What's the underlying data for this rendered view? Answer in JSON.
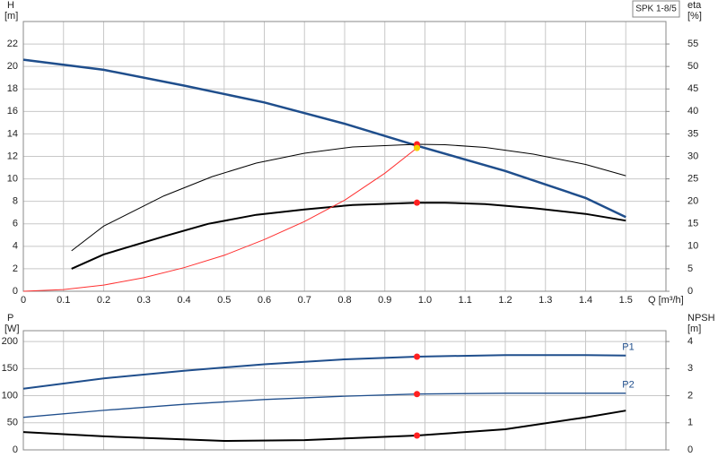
{
  "chart_data": [
    {
      "type": "line",
      "label": "SPK 1-8/5",
      "y_label": "H",
      "y_unit": "[m]",
      "y2_label": "eta",
      "y2_unit": "[%]",
      "x_label": "Q [m³/h]",
      "xlim": [
        0,
        1.6
      ],
      "xticks": [
        0,
        0.1,
        0.2,
        0.3,
        0.4,
        0.5,
        0.6,
        0.7,
        0.8,
        0.9,
        {
          "value": 1,
          "label": "1.0"
        },
        1.1,
        1.2,
        1.3,
        1.4,
        1.5
      ],
      "ylim": [
        0,
        24
      ],
      "yticks": [
        0,
        2,
        4,
        6,
        8,
        10,
        12,
        14,
        16,
        18,
        20,
        22
      ],
      "y2lim": [
        0,
        60
      ],
      "y2ticks": [
        0,
        5,
        10,
        15,
        20,
        25,
        30,
        35,
        40,
        45,
        50,
        55
      ],
      "grid": true,
      "operating_point": {
        "x": 0.98
      },
      "series": [
        {
          "color": "#1f4e8c",
          "width": 2.5,
          "marker_color": "#ff2020",
          "x": [
            0,
            0.2,
            0.4,
            0.6,
            0.8,
            0.98,
            1.2,
            1.4,
            1.5
          ],
          "values": [
            20.6,
            19.7,
            18.3,
            16.8,
            14.9,
            12.95,
            10.7,
            8.3,
            6.6
          ]
        },
        {
          "color": "#000000",
          "width": 1,
          "axis": "y2",
          "marker_color": "#ff2020",
          "x": [
            0.12,
            0.2,
            0.35,
            0.47,
            0.58,
            0.7,
            0.82,
            0.98,
            1.05,
            1.15,
            1.27,
            1.4,
            1.5
          ],
          "values": [
            9,
            14.5,
            21.2,
            25.5,
            28.5,
            30.7,
            32.1,
            32.7,
            32.6,
            32,
            30.5,
            28.2,
            25.7
          ]
        },
        {
          "color": "#000000",
          "width": 2,
          "axis": "y2",
          "marker_color": "#ff2020",
          "x": [
            0.12,
            0.2,
            0.35,
            0.46,
            0.58,
            0.7,
            0.82,
            0.98,
            1.05,
            1.15,
            1.27,
            1.4,
            1.5
          ],
          "values": [
            5,
            8.2,
            12.2,
            15,
            17,
            18.2,
            19.2,
            19.7,
            19.7,
            19.4,
            18.5,
            17.2,
            15.7
          ]
        },
        {
          "color": "#ff3030",
          "width": 1,
          "marker_color": "#f5d000",
          "x": [
            0,
            0.1,
            0.2,
            0.3,
            0.4,
            0.5,
            0.6,
            0.7,
            0.8,
            0.9,
            0.98
          ],
          "values": [
            0,
            0.15,
            0.55,
            1.2,
            2.1,
            3.2,
            4.6,
            6.2,
            8.1,
            10.5,
            12.75
          ]
        }
      ]
    },
    {
      "type": "line",
      "y_label": "P",
      "y_unit": "[W]",
      "y2_label": "NPSH",
      "y2_unit": "[m]",
      "xlim": [
        0,
        1.6
      ],
      "xticks": [
        0,
        0.1,
        0.2,
        0.3,
        0.4,
        0.5,
        0.6,
        0.7,
        0.8,
        0.9,
        1,
        1.1,
        1.2,
        1.3,
        1.4,
        1.5
      ],
      "ylim": [
        0,
        220
      ],
      "yticks": [
        0,
        50,
        100,
        150,
        200
      ],
      "y2lim": [
        0,
        4.4
      ],
      "y2ticks": [
        0,
        1,
        2,
        3,
        4
      ],
      "grid": true,
      "operating_point": {
        "x": 0.98
      },
      "series": [
        {
          "name": "P1",
          "color": "#1f4e8c",
          "width": 2,
          "marker_color": "#ff2020",
          "x": [
            0,
            0.2,
            0.4,
            0.6,
            0.8,
            0.98,
            1.2,
            1.4,
            1.5
          ],
          "values": [
            113,
            132,
            146,
            158,
            167,
            172,
            175,
            175,
            174
          ]
        },
        {
          "name": "P2",
          "color": "#1f4e8c",
          "width": 1.3,
          "marker_color": "#ff2020",
          "x": [
            0,
            0.2,
            0.4,
            0.6,
            0.8,
            0.98,
            1.2,
            1.5
          ],
          "values": [
            60,
            73,
            84,
            93,
            99,
            103,
            104.5,
            104.5
          ]
        },
        {
          "color": "#000000",
          "width": 2,
          "axis": "y2",
          "marker_color": "#ff2020",
          "x": [
            0,
            0.2,
            0.5,
            0.7,
            0.98,
            1.2,
            1.4,
            1.5
          ],
          "values": [
            0.66,
            0.5,
            0.33,
            0.36,
            0.53,
            0.76,
            1.2,
            1.45
          ]
        }
      ]
    }
  ]
}
